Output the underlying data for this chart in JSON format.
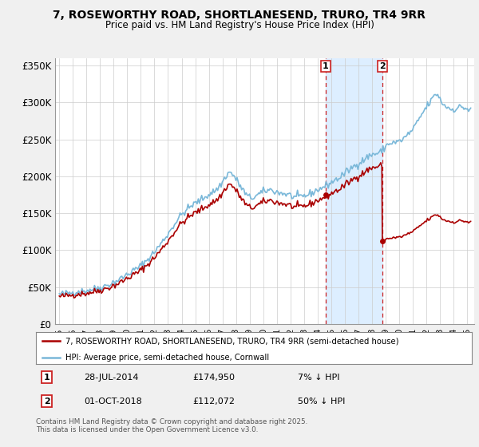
{
  "title": "7, ROSEWORTHY ROAD, SHORTLANESEND, TRURO, TR4 9RR",
  "subtitle": "Price paid vs. HM Land Registry's House Price Index (HPI)",
  "legend_line1": "7, ROSEWORTHY ROAD, SHORTLANESEND, TRURO, TR4 9RR (semi-detached house)",
  "legend_line2": "HPI: Average price, semi-detached house, Cornwall",
  "footer": "Contains HM Land Registry data © Crown copyright and database right 2025.\nThis data is licensed under the Open Government Licence v3.0.",
  "sale1_label": "1",
  "sale1_date": "28-JUL-2014",
  "sale1_price": "£174,950",
  "sale1_pct": "7% ↓ HPI",
  "sale1_x": 2014.58,
  "sale1_y": 174950,
  "sale2_label": "2",
  "sale2_date": "01-OCT-2018",
  "sale2_price": "£112,072",
  "sale2_pct": "50% ↓ HPI",
  "sale2_x": 2018.75,
  "sale2_y": 112072,
  "hpi_color": "#7ab8d9",
  "price_color": "#aa0000",
  "vline_color": "#cc2222",
  "shade_color": "#ddeeff",
  "background_color": "#f0f0f0",
  "plot_background": "#ffffff",
  "ylim": [
    0,
    360000
  ],
  "yticks": [
    0,
    50000,
    100000,
    150000,
    200000,
    250000,
    300000,
    350000
  ],
  "ytick_labels": [
    "£0",
    "£50K",
    "£100K",
    "£150K",
    "£200K",
    "£250K",
    "£300K",
    "£350K"
  ],
  "xlim_start": 1994.7,
  "xlim_end": 2025.5
}
